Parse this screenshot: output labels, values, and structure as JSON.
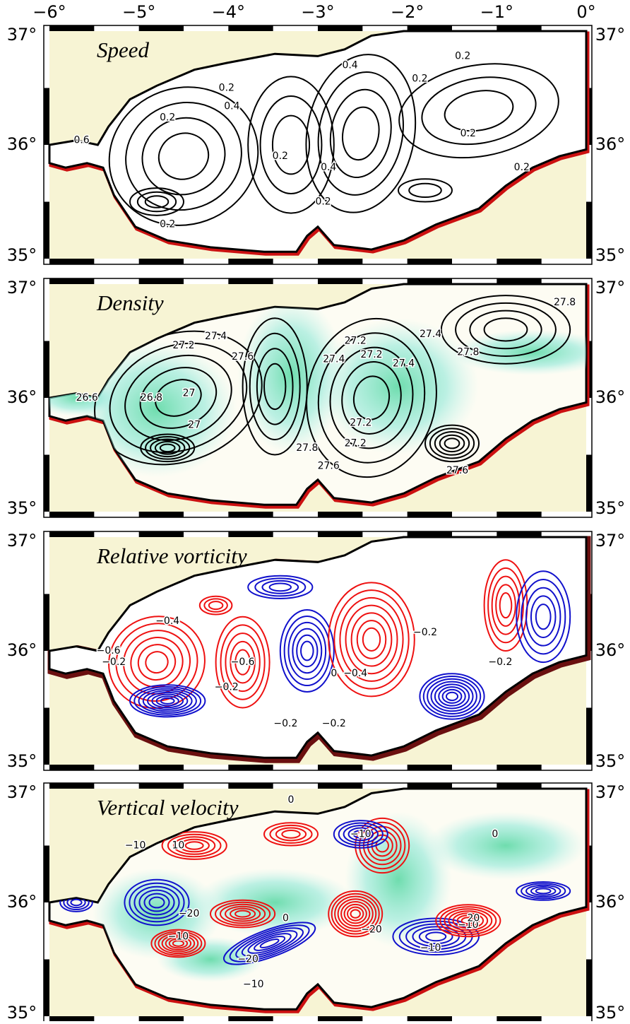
{
  "x_axis": {
    "labels": [
      "−6°",
      "−5°",
      "−4°",
      "−3°",
      "−2°",
      "−1°",
      "0°"
    ]
  },
  "y_axis": {
    "labels": [
      "37°",
      "36°",
      "35°"
    ]
  },
  "panels": [
    {
      "title": "Speed",
      "contour_labels": [
        "0.2",
        "0.4",
        "0.6",
        "0.2",
        "0.2",
        "0.4",
        "0.2",
        "0.2",
        "0.4",
        "0.2",
        "0.2",
        "0.2",
        "0.2"
      ]
    },
    {
      "title": "Density",
      "contour_labels": [
        "27.2",
        "27.6",
        "27.4",
        "26.8",
        "26.6",
        "27",
        "27.2",
        "27.4",
        "27.2",
        "27.8",
        "27.6",
        "27.2",
        "27.4",
        "27.2",
        "27.4",
        "27.6",
        "27.8",
        "27.8",
        "27"
      ]
    },
    {
      "title": "Relative vorticity",
      "contour_labels": [
        "−0.4",
        "−0.6",
        "−0.2",
        "−0.6",
        "−0.2",
        "−0.2",
        "−0.4",
        "−0.2",
        "−0.2",
        "−0.2",
        "0"
      ]
    },
    {
      "title": "Vertical velocity",
      "contour_labels": [
        "−10",
        "10",
        "−20",
        "−10",
        "−20",
        "−10",
        "0",
        "−10",
        "−20",
        "−10",
        "0",
        "−10",
        "20",
        "0"
      ]
    }
  ]
}
